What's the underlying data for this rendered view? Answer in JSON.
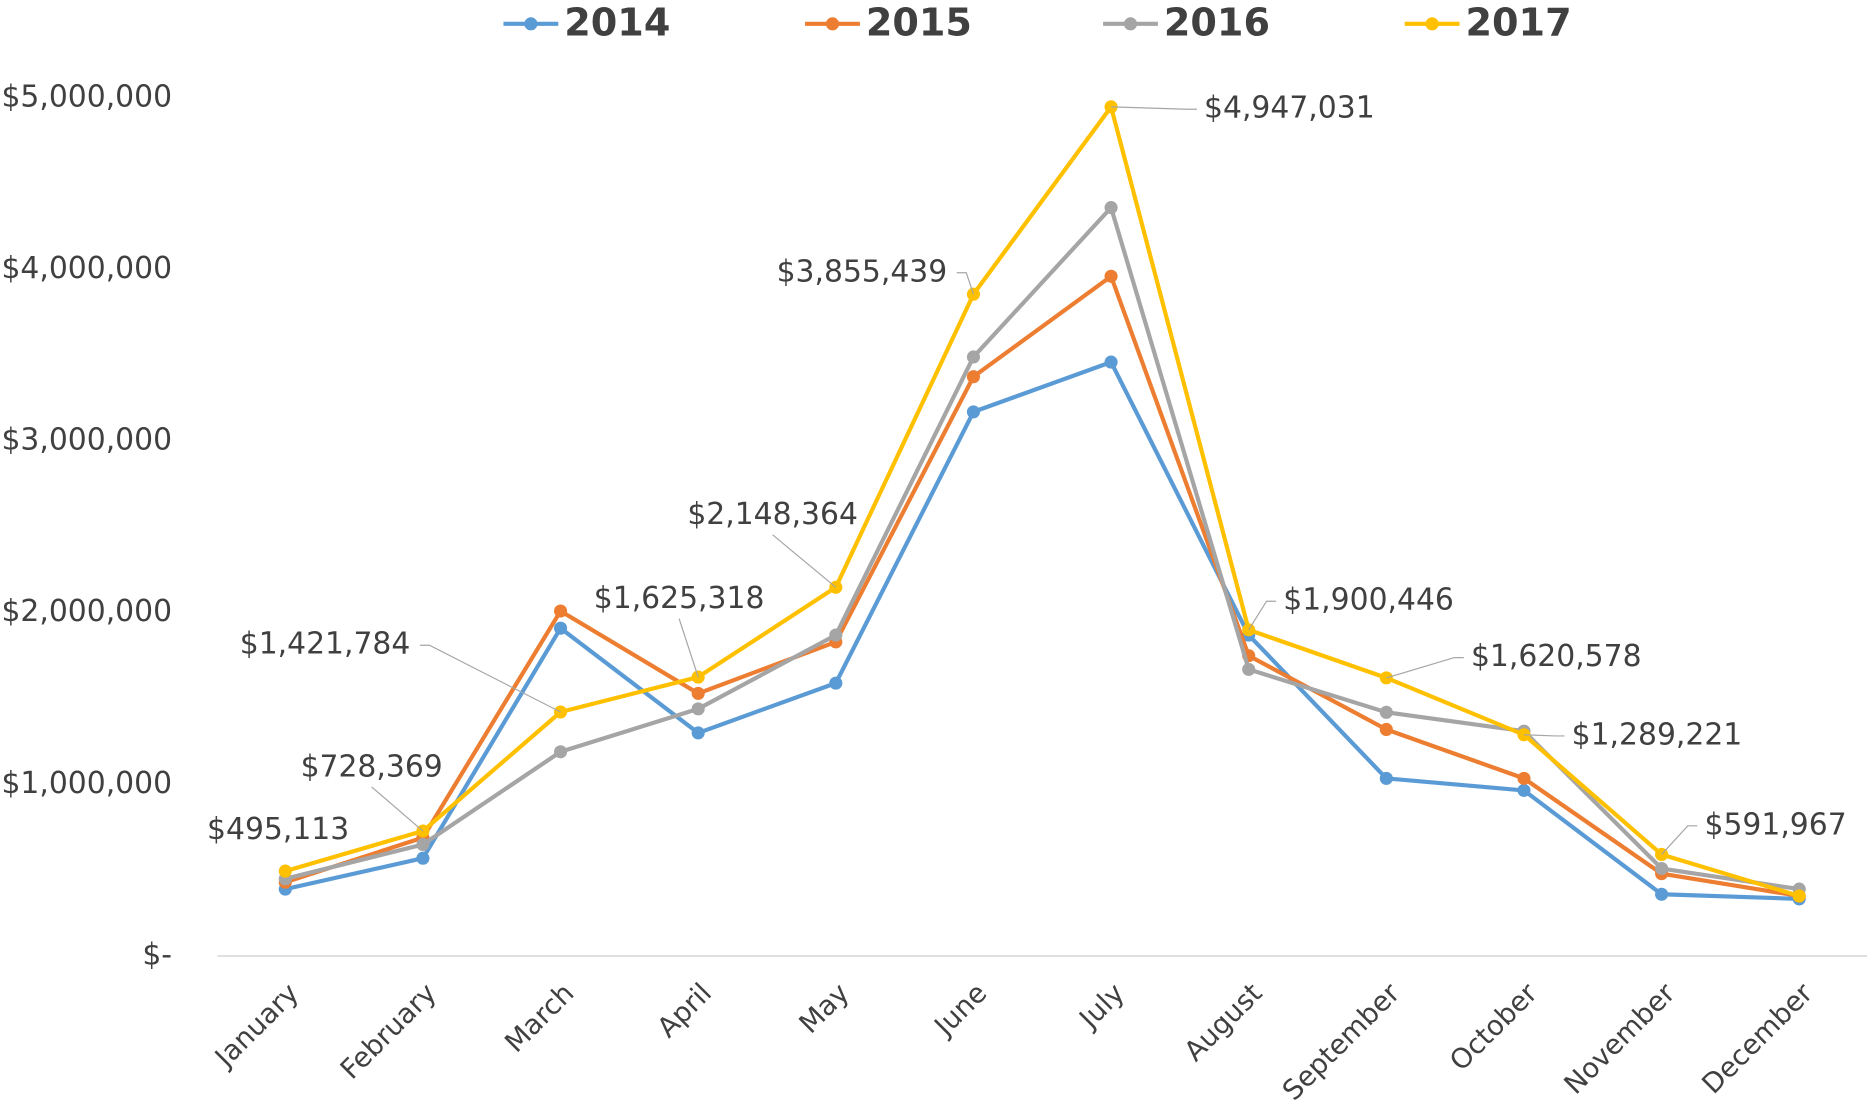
{
  "chart_data": {
    "type": "line",
    "categories": [
      "January",
      "February",
      "March",
      "April",
      "May",
      "June",
      "July",
      "August",
      "September",
      "October",
      "November",
      "December"
    ],
    "series": [
      {
        "name": "2014",
        "color": "#5b9bd5",
        "values": [
          390000,
          570000,
          1910000,
          1300000,
          1590000,
          3170000,
          3460000,
          1870000,
          1035000,
          965000,
          360000,
          333000
        ]
      },
      {
        "name": "2015",
        "color": "#ed7d31",
        "values": [
          430000,
          690000,
          2010000,
          1530000,
          1830000,
          3375000,
          3960000,
          1750000,
          1320000,
          1035000,
          480000,
          350000
        ]
      },
      {
        "name": "2016",
        "color": "#a5a5a5",
        "values": [
          450000,
          650000,
          1190000,
          1440000,
          1870000,
          3490000,
          4360000,
          1670000,
          1420000,
          1310000,
          510000,
          390000
        ]
      },
      {
        "name": "2017",
        "color": "#ffc000",
        "values": [
          495113,
          728369,
          1421784,
          1625318,
          2148364,
          3855439,
          4947031,
          1900446,
          1620578,
          1289221,
          591967,
          350000
        ],
        "value_labels": [
          "$495,113",
          "$728,369",
          "$1,421,784",
          "$1,625,318",
          "$2,148,364",
          "$3,855,439",
          "$4,947,031",
          "$1,900,446",
          "$1,620,578",
          "$1,289,221",
          "$591,967",
          null
        ]
      }
    ],
    "ylim": [
      0,
      5000000
    ],
    "yticks": [
      {
        "value": 0,
        "label": "$-"
      },
      {
        "value": 1000000,
        "label": "$1,000,000"
      },
      {
        "value": 2000000,
        "label": "$2,000,000"
      },
      {
        "value": 3000000,
        "label": "$3,000,000"
      },
      {
        "value": 4000000,
        "label": "$4,000,000"
      },
      {
        "value": 5000000,
        "label": "$5,000,000"
      }
    ],
    "legend": "top",
    "grid": false
  }
}
